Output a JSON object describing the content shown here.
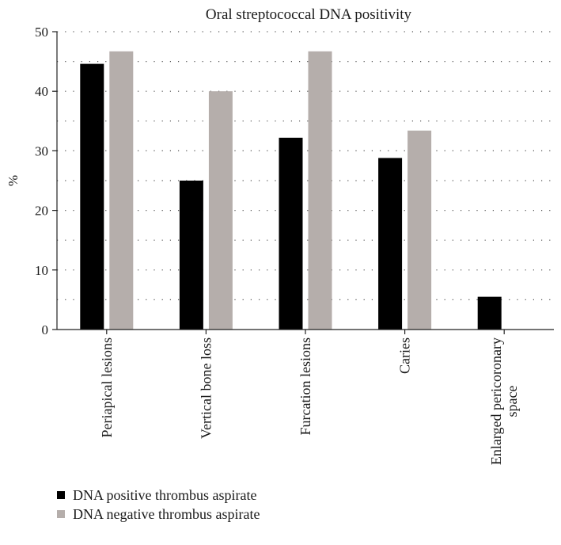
{
  "chart_data": {
    "type": "bar",
    "title": "Oral streptococcal DNA positivity",
    "ylabel": "%",
    "xlabel": "",
    "ylim": [
      0,
      50
    ],
    "yticks": [
      0,
      10,
      20,
      30,
      40,
      50
    ],
    "grid": "dotted horizontal lines every 5 units",
    "legend_position": "bottom-left",
    "categories": [
      [
        "Periapical lesions"
      ],
      [
        "Vertical bone loss"
      ],
      [
        "Furcation lesions"
      ],
      [
        "Caries"
      ],
      [
        "Enlarged pericoronary",
        "space"
      ]
    ],
    "series": [
      {
        "name": "DNA positive thrombus aspirate",
        "color": "#000000",
        "values": [
          44.6,
          25.0,
          32.2,
          28.8,
          5.5
        ]
      },
      {
        "name": "DNA negative thrombus aspirate",
        "color": "#b5aeab",
        "values": [
          46.7,
          40.0,
          46.7,
          33.4,
          0
        ]
      }
    ]
  }
}
